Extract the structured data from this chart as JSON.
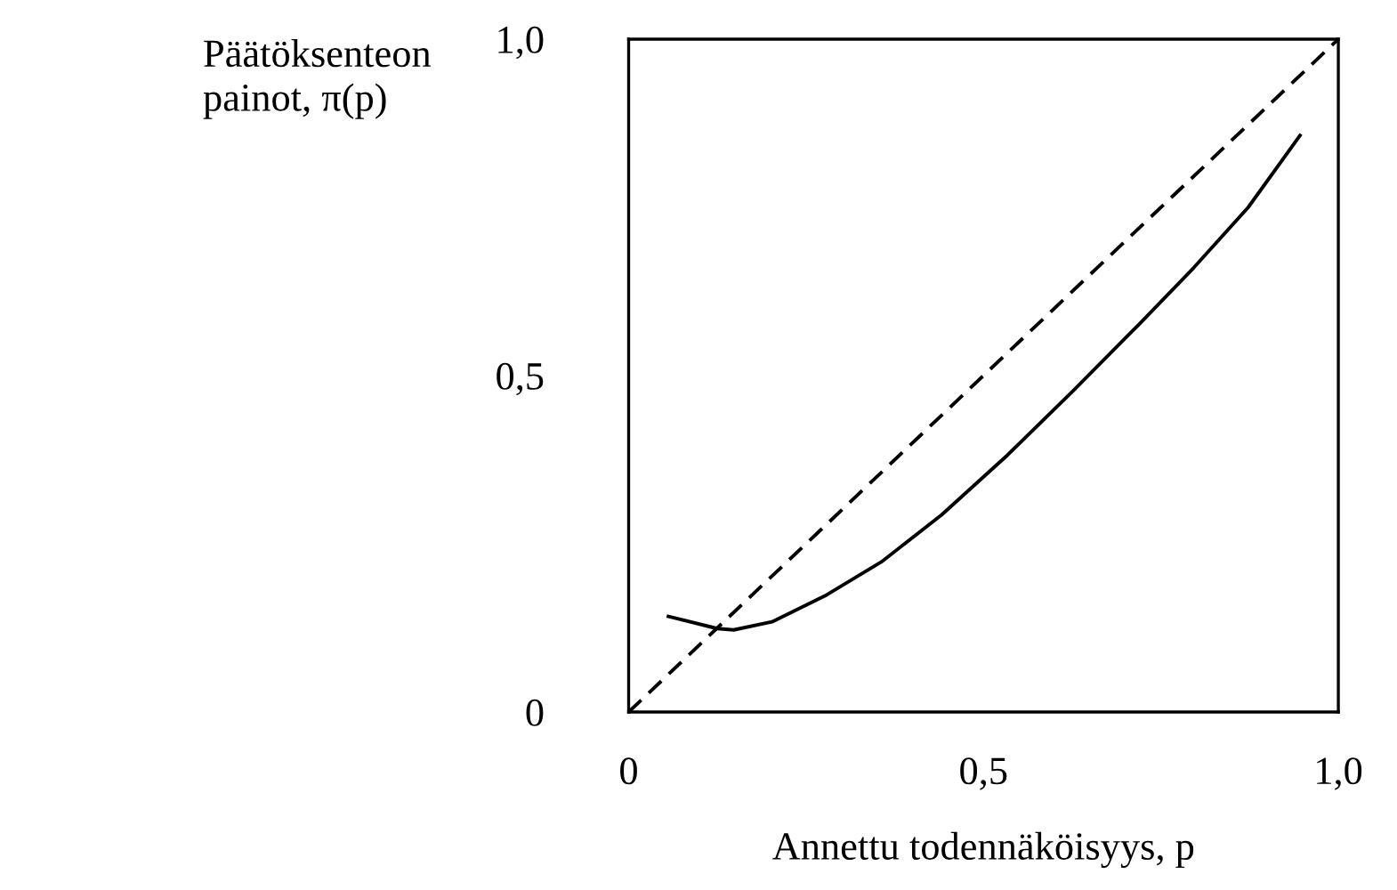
{
  "chart_data": {
    "type": "line",
    "xlabel": "Annettu todennäköisyys, p",
    "ylabel": "Päätöksenteon\npainot, π(p)",
    "xlim": [
      0,
      1
    ],
    "ylim": [
      0,
      1
    ],
    "xticks": [
      0,
      {
        "value": 0.5,
        "label": "0,5"
      },
      {
        "value": 1,
        "label": "1,0"
      }
    ],
    "yticks": [
      0,
      {
        "value": 0.5,
        "label": "0,5"
      },
      {
        "value": 1,
        "label": "1,0"
      }
    ],
    "grid": false,
    "legend": false,
    "series": [
      {
        "color": "#000000",
        "line_style": "solid",
        "x": [
          0.056,
          0.125,
          0.148,
          0.202,
          0.279,
          0.356,
          0.441,
          0.534,
          0.626,
          0.719,
          0.796,
          0.873,
          0.946
        ],
        "values": [
          0.142,
          0.124,
          0.122,
          0.134,
          0.174,
          0.223,
          0.293,
          0.382,
          0.477,
          0.576,
          0.66,
          0.75,
          0.857
        ]
      },
      {
        "color": "#000000",
        "line_style": "dashed",
        "x": [
          0,
          1
        ],
        "values": [
          0,
          1
        ]
      }
    ]
  }
}
